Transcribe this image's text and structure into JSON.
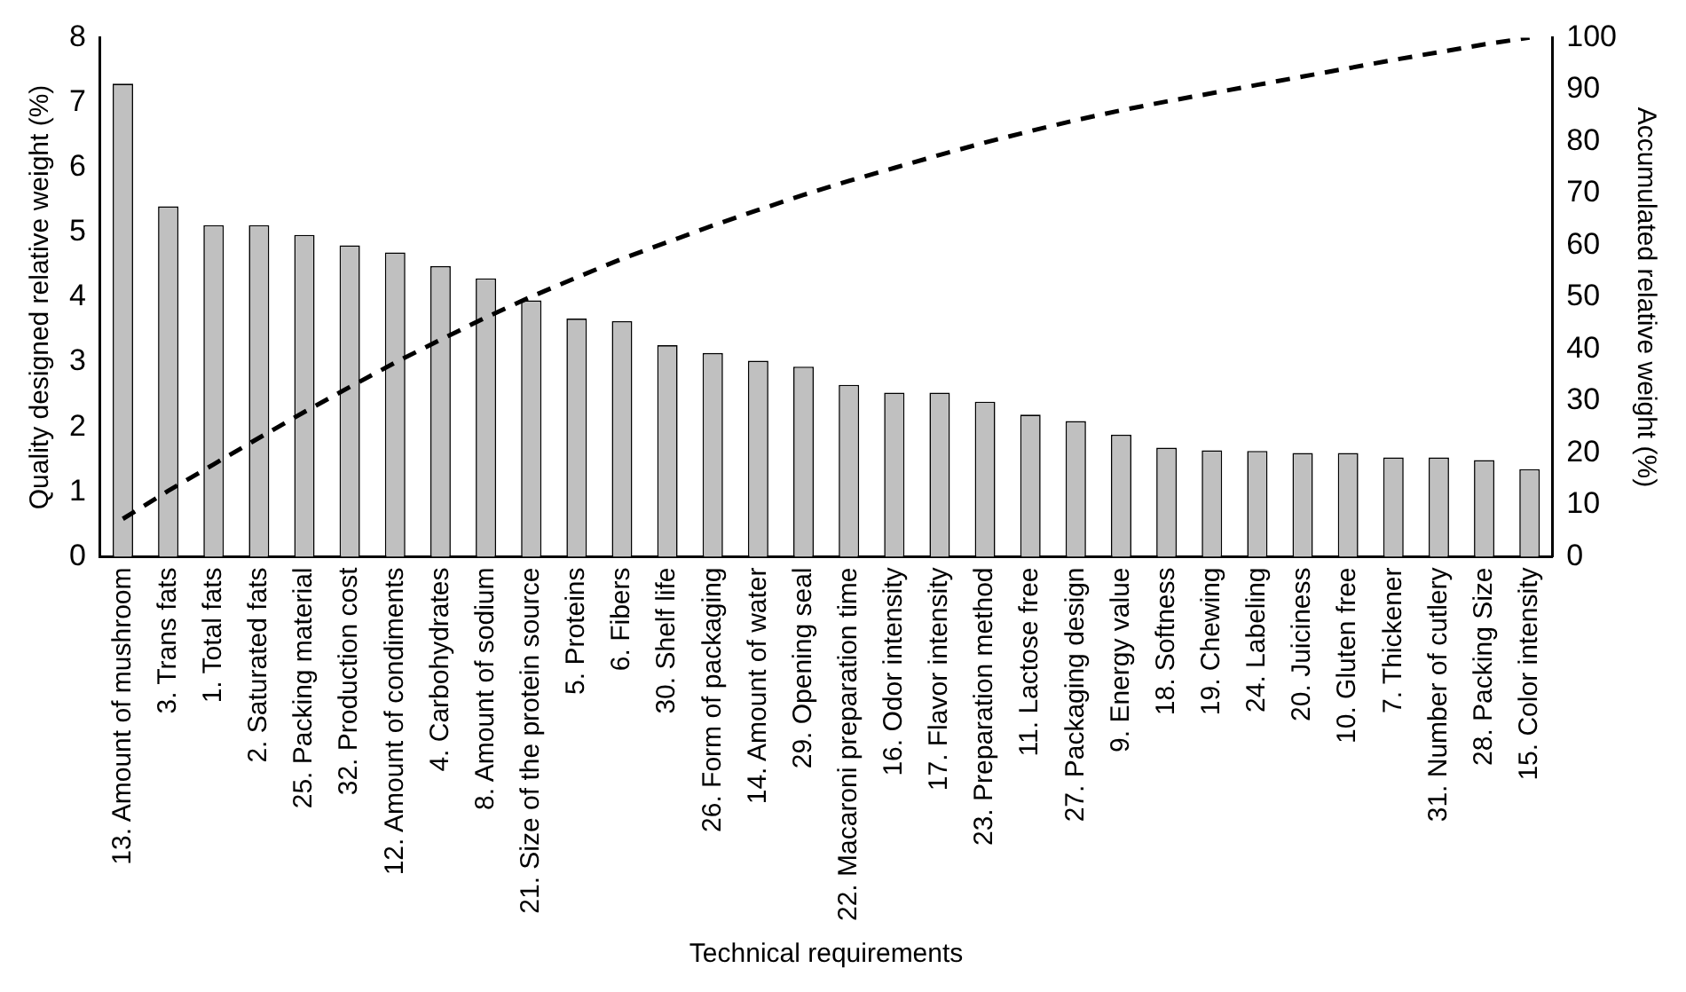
{
  "chart_data": {
    "type": "bar",
    "xlabel": "Technical requirements",
    "ylabel": "Quality designed relative weight (%)",
    "y2label": "Accumulated relative weight (%)",
    "categories": [
      "13. Amount of mushroom",
      "3. Trans fats",
      "1. Total fats",
      "2. Saturated fats",
      "25. Packing material",
      "32. Production cost",
      "12. Amount of condiments",
      "4. Carbohydrates",
      "8. Amount of sodium",
      "21. Size of the protein source",
      "5. Proteins",
      "6. Fibers",
      "30. Shelf life",
      "26. Form of packaging",
      "14. Amount of water",
      "29. Opening seal",
      "22. Macaroni preparation time",
      "16. Odor intensity",
      "17. Flavor intensity",
      "23. Preparation method",
      "11. Lactose free",
      "27. Packaging design",
      "9. Energy value",
      "18. Softness",
      "19. Chewing",
      "24. Labeling",
      "20. Juiciness",
      "10. Gluten free",
      "7. Thickener",
      "31. Number of cutlery",
      "28. Packing Size",
      "15. Color intensity"
    ],
    "series": [
      {
        "color": "#c0c0c0",
        "values": [
          7.29,
          5.4,
          5.11,
          5.11,
          4.96,
          4.8,
          4.69,
          4.48,
          4.29,
          3.95,
          3.67,
          3.63,
          3.26,
          3.14,
          3.02,
          2.93,
          2.65,
          2.53,
          2.53,
          2.39,
          2.19,
          2.09,
          1.88,
          1.68,
          1.64,
          1.63,
          1.6,
          1.6,
          1.53,
          1.53,
          1.49,
          1.35
        ]
      },
      {
        "type": "line",
        "axis": "y2",
        "color": "#000000",
        "line_style": "dashed",
        "marker": "none",
        "values": [
          7.3,
          12.7,
          17.8,
          22.9,
          27.9,
          32.7,
          37.4,
          41.8,
          46.1,
          50.1,
          53.8,
          57.4,
          60.6,
          63.8,
          66.8,
          69.7,
          72.4,
          74.9,
          77.4,
          79.8,
          82.0,
          84.1,
          86.0,
          87.7,
          89.3,
          90.9,
          92.5,
          94.1,
          95.7,
          97.2,
          98.7,
          100
        ]
      }
    ],
    "ylim": [
      0,
      8
    ],
    "yticks": [
      0,
      1,
      2,
      3,
      4,
      5,
      6,
      7,
      8
    ],
    "y2lim": [
      0,
      100
    ],
    "y2ticks": [
      0,
      10,
      20,
      30,
      40,
      50,
      60,
      70,
      80,
      90,
      100
    ],
    "grid": false
  }
}
